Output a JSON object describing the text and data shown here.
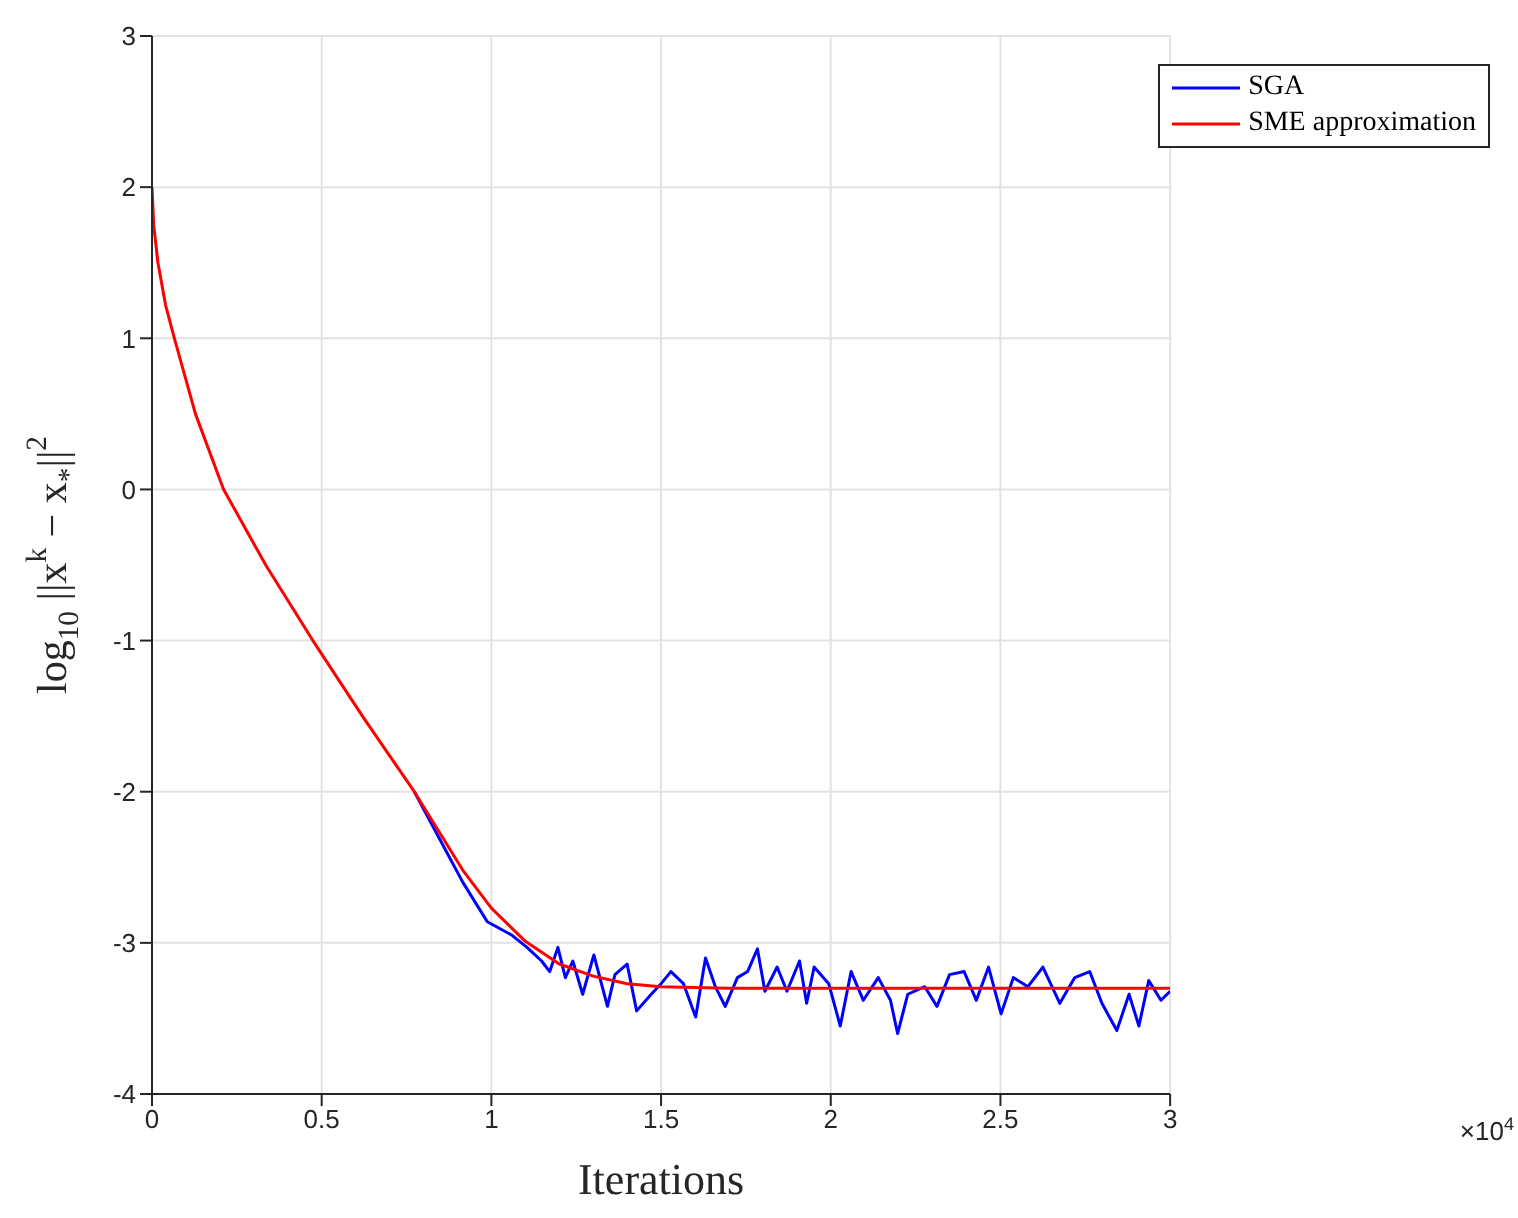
{
  "chart_data": {
    "type": "line",
    "xlabel": "Iterations",
    "ylabel": "log$_{10}$ ||x$^{k}$ − x$_{*}$||$^{2}$",
    "annotations": [
      "×10$^{4}$"
    ],
    "xlim": [
      0,
      3
    ],
    "xticks": [
      0,
      0.5,
      1,
      1.5,
      2,
      2.5,
      3
    ],
    "ylim": [
      -4,
      3
    ],
    "yticks": [
      -4,
      -3,
      -2,
      -1,
      0,
      1,
      2,
      3
    ],
    "grid": true,
    "legend": "top right",
    "line_style": "solid",
    "series": [
      {
        "name": "SGA",
        "color": "#0000ff",
        "x": [
          0.773,
          0.916,
          0.988,
          1.061,
          1.105,
          1.148,
          1.172,
          1.196,
          1.218,
          1.24,
          1.269,
          1.302,
          1.342,
          1.364,
          1.4,
          1.428,
          1.471,
          1.5,
          1.529,
          1.566,
          1.602,
          1.631,
          1.66,
          1.689,
          1.725,
          1.755,
          1.784,
          1.806,
          1.842,
          1.871,
          1.908,
          1.929,
          1.951,
          1.994,
          2.028,
          2.06,
          2.096,
          2.14,
          2.176,
          2.197,
          2.227,
          2.277,
          2.313,
          2.35,
          2.393,
          2.429,
          2.465,
          2.502,
          2.538,
          2.581,
          2.625,
          2.675,
          2.719,
          2.763,
          2.799,
          2.843,
          2.879,
          2.908,
          2.937,
          2.973,
          3
        ],
        "values": [
          -2,
          -2.6,
          -2.86,
          -2.95,
          -3.03,
          -3.12,
          -3.19,
          -3.03,
          -3.23,
          -3.12,
          -3.34,
          -3.08,
          -3.42,
          -3.21,
          -3.14,
          -3.45,
          -3.34,
          -3.27,
          -3.19,
          -3.27,
          -3.49,
          -3.1,
          -3.29,
          -3.42,
          -3.23,
          -3.19,
          -3.04,
          -3.32,
          -3.16,
          -3.32,
          -3.12,
          -3.4,
          -3.16,
          -3.27,
          -3.55,
          -3.19,
          -3.38,
          -3.23,
          -3.38,
          -3.6,
          -3.34,
          -3.29,
          -3.42,
          -3.21,
          -3.19,
          -3.38,
          -3.16,
          -3.47,
          -3.23,
          -3.29,
          -3.16,
          -3.4,
          -3.23,
          -3.19,
          -3.4,
          -3.58,
          -3.34,
          -3.55,
          -3.25,
          -3.38,
          -3.32
        ]
      },
      {
        "name": "SME approximation",
        "color": "#ff0000",
        "x": [
          0,
          0.005,
          0.0175,
          0.04,
          0.066,
          0.128,
          0.211,
          0.335,
          0.474,
          0.62,
          0.773,
          0.916,
          1,
          1.1,
          1.2,
          1.3,
          1.4,
          1.5,
          1.7,
          3
        ],
        "values": [
          2,
          1.75,
          1.5,
          1.22,
          1,
          0.5,
          0,
          -0.5,
          -1,
          -1.5,
          -2,
          -2.52,
          -2.77,
          -2.99,
          -3.14,
          -3.22,
          -3.27,
          -3.29,
          -3.3,
          -3.3
        ]
      }
    ]
  }
}
